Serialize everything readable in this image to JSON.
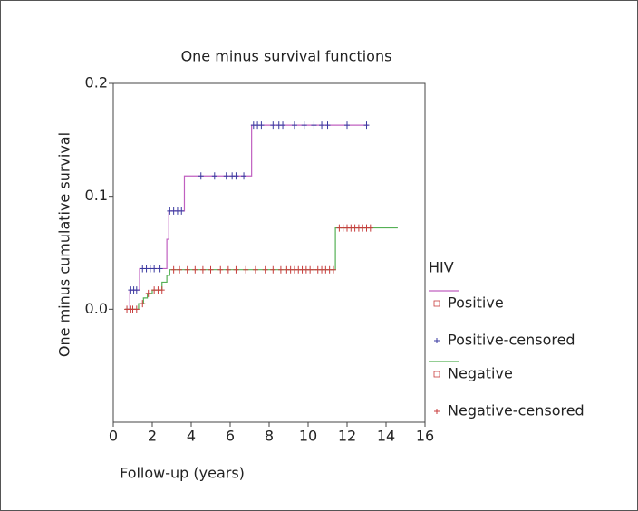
{
  "chart_data": {
    "type": "step",
    "title": "One minus survival functions",
    "x_label": "Follow-up (years)",
    "y_label": "One minus cumulative survival",
    "legend_title": "HIV",
    "xlim": [
      0,
      16
    ],
    "ylim": [
      -0.1,
      0.2
    ],
    "xticks": [
      0,
      2,
      4,
      6,
      8,
      10,
      12,
      14,
      16
    ],
    "yticks": [
      {
        "value": 0,
        "label": "0.0"
      },
      0.1,
      0.2
    ],
    "series": [
      {
        "name": "Positive",
        "kind": "step",
        "color": "#c060c0",
        "x": [
          0.6,
          0.85,
          1.35,
          2.75,
          2.85,
          3.65,
          7.1,
          13.1
        ],
        "values": [
          0,
          0.017,
          0.036,
          0.062,
          0.087,
          0.118,
          0.163,
          0.163
        ]
      },
      {
        "name": "Positive-censored",
        "kind": "censor",
        "color": "#3a3aa0",
        "x": [
          0.9,
          1.05,
          1.2,
          1.5,
          1.7,
          1.9,
          2.1,
          2.4,
          2.9,
          3.1,
          3.3,
          3.5,
          4.5,
          5.2,
          5.8,
          6.1,
          6.3,
          6.7,
          7.2,
          7.4,
          7.6,
          8.2,
          8.5,
          8.7,
          9.3,
          9.8,
          10.3,
          10.7,
          11.0,
          12.0,
          13.0
        ],
        "values": [
          0.017,
          0.017,
          0.017,
          0.036,
          0.036,
          0.036,
          0.036,
          0.036,
          0.087,
          0.087,
          0.087,
          0.087,
          0.118,
          0.118,
          0.118,
          0.118,
          0.118,
          0.118,
          0.163,
          0.163,
          0.163,
          0.163,
          0.163,
          0.163,
          0.163,
          0.163,
          0.163,
          0.163,
          0.163,
          0.163,
          0.163
        ]
      },
      {
        "name": "Negative",
        "kind": "step",
        "color": "#55b055",
        "x": [
          0.6,
          1.3,
          1.55,
          1.75,
          2.0,
          2.5,
          2.75,
          2.9,
          11.4,
          14.6
        ],
        "values": [
          0,
          0.005,
          0.01,
          0.014,
          0.017,
          0.024,
          0.03,
          0.035,
          0.072,
          0.072
        ]
      },
      {
        "name": "Negative-censored",
        "kind": "censor",
        "color": "#c83c3c",
        "x": [
          0.7,
          0.9,
          1.0,
          1.2,
          1.5,
          1.8,
          2.1,
          2.3,
          2.5,
          3.1,
          3.4,
          3.8,
          4.2,
          4.6,
          5.0,
          5.5,
          5.9,
          6.3,
          6.8,
          7.3,
          7.8,
          8.2,
          8.6,
          8.9,
          9.1,
          9.3,
          9.5,
          9.7,
          9.9,
          10.1,
          10.3,
          10.5,
          10.7,
          10.9,
          11.1,
          11.3,
          11.6,
          11.8,
          12.0,
          12.2,
          12.4,
          12.6,
          12.8,
          13.0,
          13.2
        ],
        "values": [
          0,
          0,
          0,
          0,
          0.005,
          0.014,
          0.017,
          0.017,
          0.017,
          0.035,
          0.035,
          0.035,
          0.035,
          0.035,
          0.035,
          0.035,
          0.035,
          0.035,
          0.035,
          0.035,
          0.035,
          0.035,
          0.035,
          0.035,
          0.035,
          0.035,
          0.035,
          0.035,
          0.035,
          0.035,
          0.035,
          0.035,
          0.035,
          0.035,
          0.035,
          0.035,
          0.072,
          0.072,
          0.072,
          0.072,
          0.072,
          0.072,
          0.072,
          0.072,
          0.072
        ]
      }
    ]
  }
}
